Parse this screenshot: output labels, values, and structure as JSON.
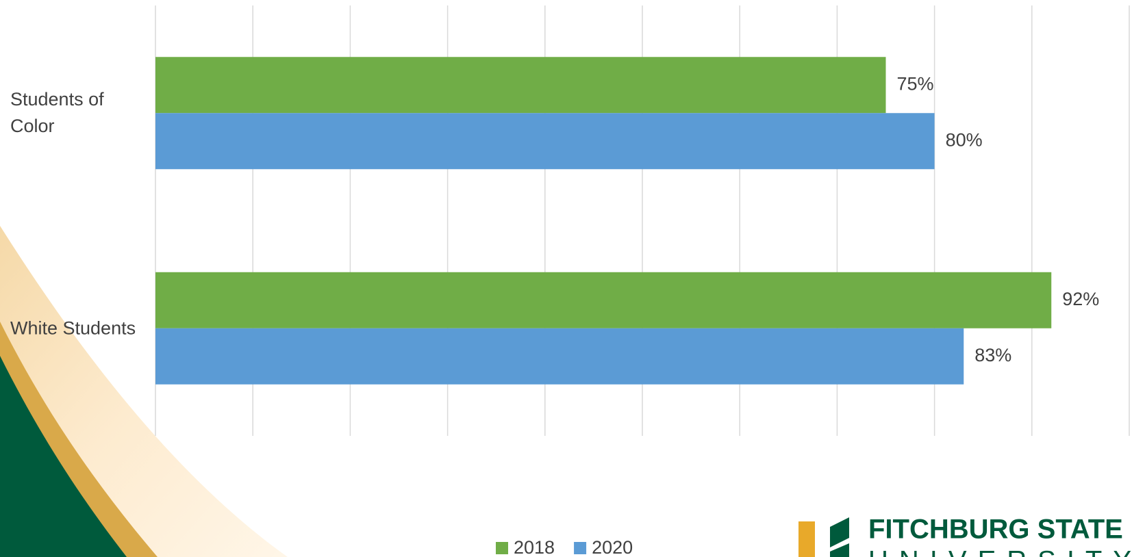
{
  "chart_data": {
    "type": "barh",
    "categories": [
      "Students of Color",
      "White Students"
    ],
    "series": [
      {
        "name": "2018",
        "color": "#70ad47",
        "values": [
          75,
          92
        ],
        "value_labels": [
          "75%",
          "92%"
        ]
      },
      {
        "name": "2020",
        "color": "#5b9bd5",
        "values": [
          80,
          83
        ],
        "value_labels": [
          "80%",
          "83%"
        ]
      }
    ],
    "xlim": [
      0,
      100
    ],
    "xticks": [
      0,
      10,
      20,
      30,
      40,
      50,
      60,
      70,
      80,
      90,
      100
    ],
    "grid": true
  },
  "logo": {
    "line1": "FITCHBURG STATE",
    "line2": "UNIVERSITY"
  }
}
